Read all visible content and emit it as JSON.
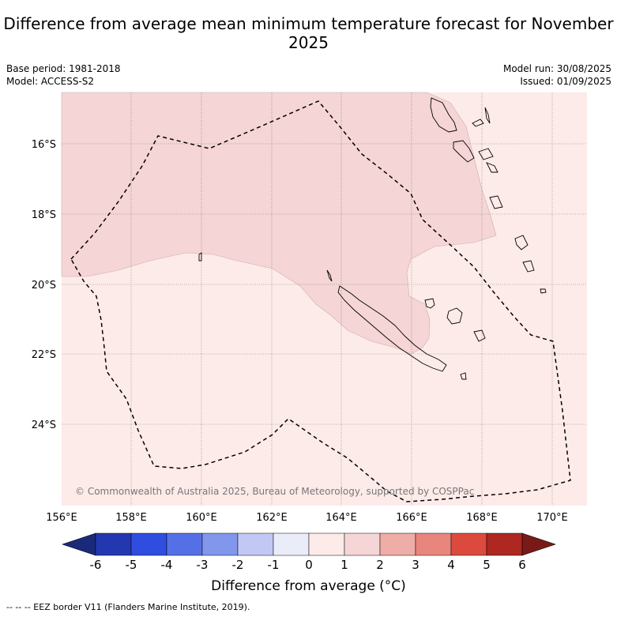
{
  "title": "Difference from average mean minimum temperature forecast for November 2025",
  "base_period": "Base period: 1981-2018",
  "model": "Model: ACCESS-S2",
  "model_run": "Model run: 30/08/2025",
  "issued": "Issued: 01/09/2025",
  "copyright": "© Commonwealth of Australia 2025, Bureau of Meteorology, supported by COSPPac",
  "legend_border": "--  --  -- EEZ border V11 (Flanders Marine Institute, 2019).",
  "colorbar_label": "Difference from average (°C)",
  "map": {
    "lon_range": [
      156,
      171
    ],
    "lat_range": [
      -26.2,
      -14.4
    ],
    "lon_ticks": [
      "156°E",
      "158°E",
      "160°E",
      "162°E",
      "164°E",
      "166°E",
      "168°E",
      "170°E"
    ],
    "lat_ticks": [
      "16°S",
      "18°S",
      "20°S",
      "22°S",
      "24°S"
    ],
    "grid": true,
    "fill_colors": {
      "anom_0_1": "#fdebe9",
      "anom_1_2": "#f5d5d5"
    }
  },
  "colorbar": {
    "ticks": [
      "-6",
      "-5",
      "-4",
      "-3",
      "-2",
      "-1",
      "0",
      "1",
      "2",
      "3",
      "4",
      "5",
      "6"
    ],
    "colors": [
      "#1a2a7a",
      "#2338b0",
      "#2f4ee0",
      "#5570e6",
      "#8296ec",
      "#c2c8f4",
      "#ebecfa",
      "#fdebe9",
      "#f5d5d5",
      "#efada8",
      "#e8857d",
      "#dc4a3e",
      "#ae2721",
      "#7a1a18"
    ]
  }
}
